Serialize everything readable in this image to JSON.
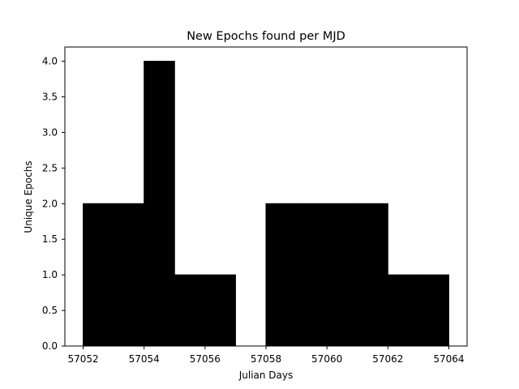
{
  "chart_data": {
    "type": "bar",
    "title": "New Epochs found per MJD",
    "xlabel": "Julian Days",
    "ylabel": "Unique Epochs",
    "bin_edges": [
      57052,
      57053,
      57054,
      57055,
      57056,
      57057,
      57058,
      57059,
      57060,
      57061,
      57062,
      57063,
      57064
    ],
    "values": [
      2,
      2,
      4,
      1,
      1,
      0,
      2,
      2,
      2,
      2,
      1,
      1
    ],
    "xlim": [
      57051.4,
      57064.6
    ],
    "ylim": [
      0,
      4.2
    ],
    "xticks": [
      57052,
      57054,
      57056,
      57058,
      57060,
      57062,
      57064
    ],
    "xtick_labels": [
      "57052",
      "57054",
      "57056",
      "57058",
      "57060",
      "57062",
      "57064"
    ],
    "yticks": [
      0,
      0.5,
      1,
      1.5,
      2,
      2.5,
      3,
      3.5,
      4
    ],
    "ytick_labels": [
      "0.0",
      "0.5",
      "1.0",
      "1.5",
      "2.0",
      "2.5",
      "3.0",
      "3.5",
      "4.0"
    ],
    "grid": false,
    "legend": "none",
    "bar_color": "#000000",
    "edge_color": "#000000"
  }
}
